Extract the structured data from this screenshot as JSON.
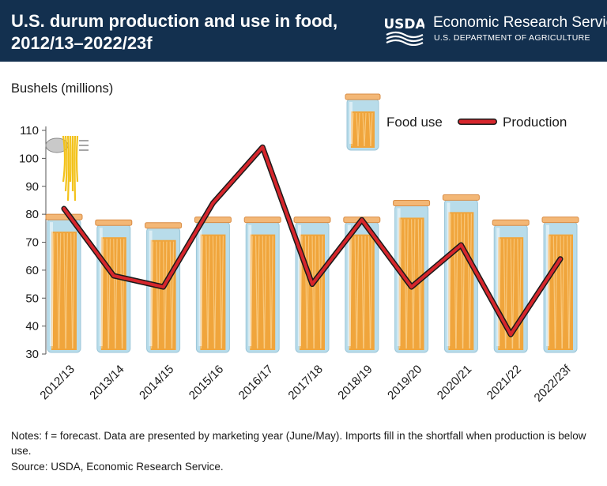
{
  "header": {
    "title_line1": "U.S. durum production and use in food,",
    "title_line2": "2012/13–2022/23f",
    "agency_logo": "USDA",
    "agency_name": "Economic Research Service",
    "agency_dept": "U.S. DEPARTMENT OF AGRICULTURE"
  },
  "colors": {
    "header_bg": "#13304f",
    "production_line": "#d6262c",
    "line_outline": "#1a1a1a",
    "jar_glass": "#b8dcea",
    "pasta": "#f0a53c",
    "lid": "#f3b776"
  },
  "chart_data": {
    "type": "bar",
    "title": "U.S. durum production and use in food, 2012/13–2022/23f",
    "ylabel": "Bushels (millions)",
    "xlabel": "",
    "ylim": [
      30,
      110
    ],
    "yticks": [
      30,
      40,
      50,
      60,
      70,
      80,
      90,
      100,
      110
    ],
    "grid": false,
    "legend": "top-right",
    "categories": [
      "2012/13",
      "2013/14",
      "2014/15",
      "2015/16",
      "2016/17",
      "2017/18",
      "2018/19",
      "2019/20",
      "2020/21",
      "2021/22",
      "2022/23f"
    ],
    "series": [
      {
        "name": "Food use",
        "type": "bar",
        "values": [
          80,
          78,
          77,
          79,
          79,
          79,
          79,
          85,
          87,
          78,
          79
        ]
      },
      {
        "name": "Production",
        "type": "line",
        "values": [
          82,
          58,
          54,
          84,
          104,
          55,
          78,
          54,
          69,
          37,
          64
        ]
      }
    ]
  },
  "notes": "Notes: f = forecast. Data are presented by marketing year (June/May). Imports fill in the shortfall when production is below use.",
  "source": "Source: USDA, Economic Research Service."
}
